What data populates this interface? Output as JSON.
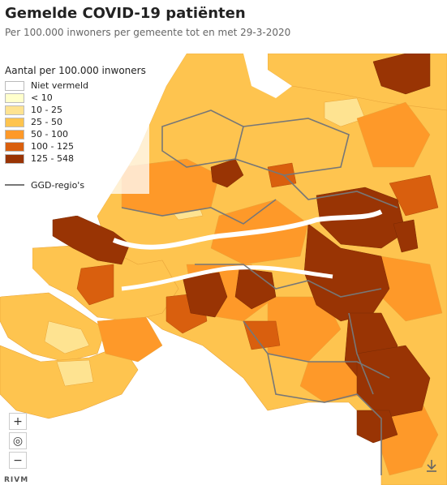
{
  "title": "Gemelde COVID-19 patiënten",
  "subtitle": "Per 100.000 inwoners per gemeente tot en met 29-3-2020",
  "legend": {
    "title": "Aantal per 100.000 inwoners",
    "classes": [
      {
        "label": "Niet vermeld",
        "color": "#ffffff"
      },
      {
        "label": "< 10",
        "color": "#ffffcc"
      },
      {
        "label": "10 - 25",
        "color": "#fee391"
      },
      {
        "label": "25 - 50",
        "color": "#fec44f"
      },
      {
        "label": "50 - 100",
        "color": "#fe9929"
      },
      {
        "label": "100 - 125",
        "color": "#d95f0e"
      },
      {
        "label": "125 - 548",
        "color": "#993404"
      }
    ],
    "boundary_label": "GGD-regio's",
    "boundary_color": "#777777"
  },
  "controls": {
    "zoom_in": "+",
    "locate": "◎",
    "zoom_out": "−"
  },
  "brand": "RIVM",
  "download_icon": "download-icon"
}
